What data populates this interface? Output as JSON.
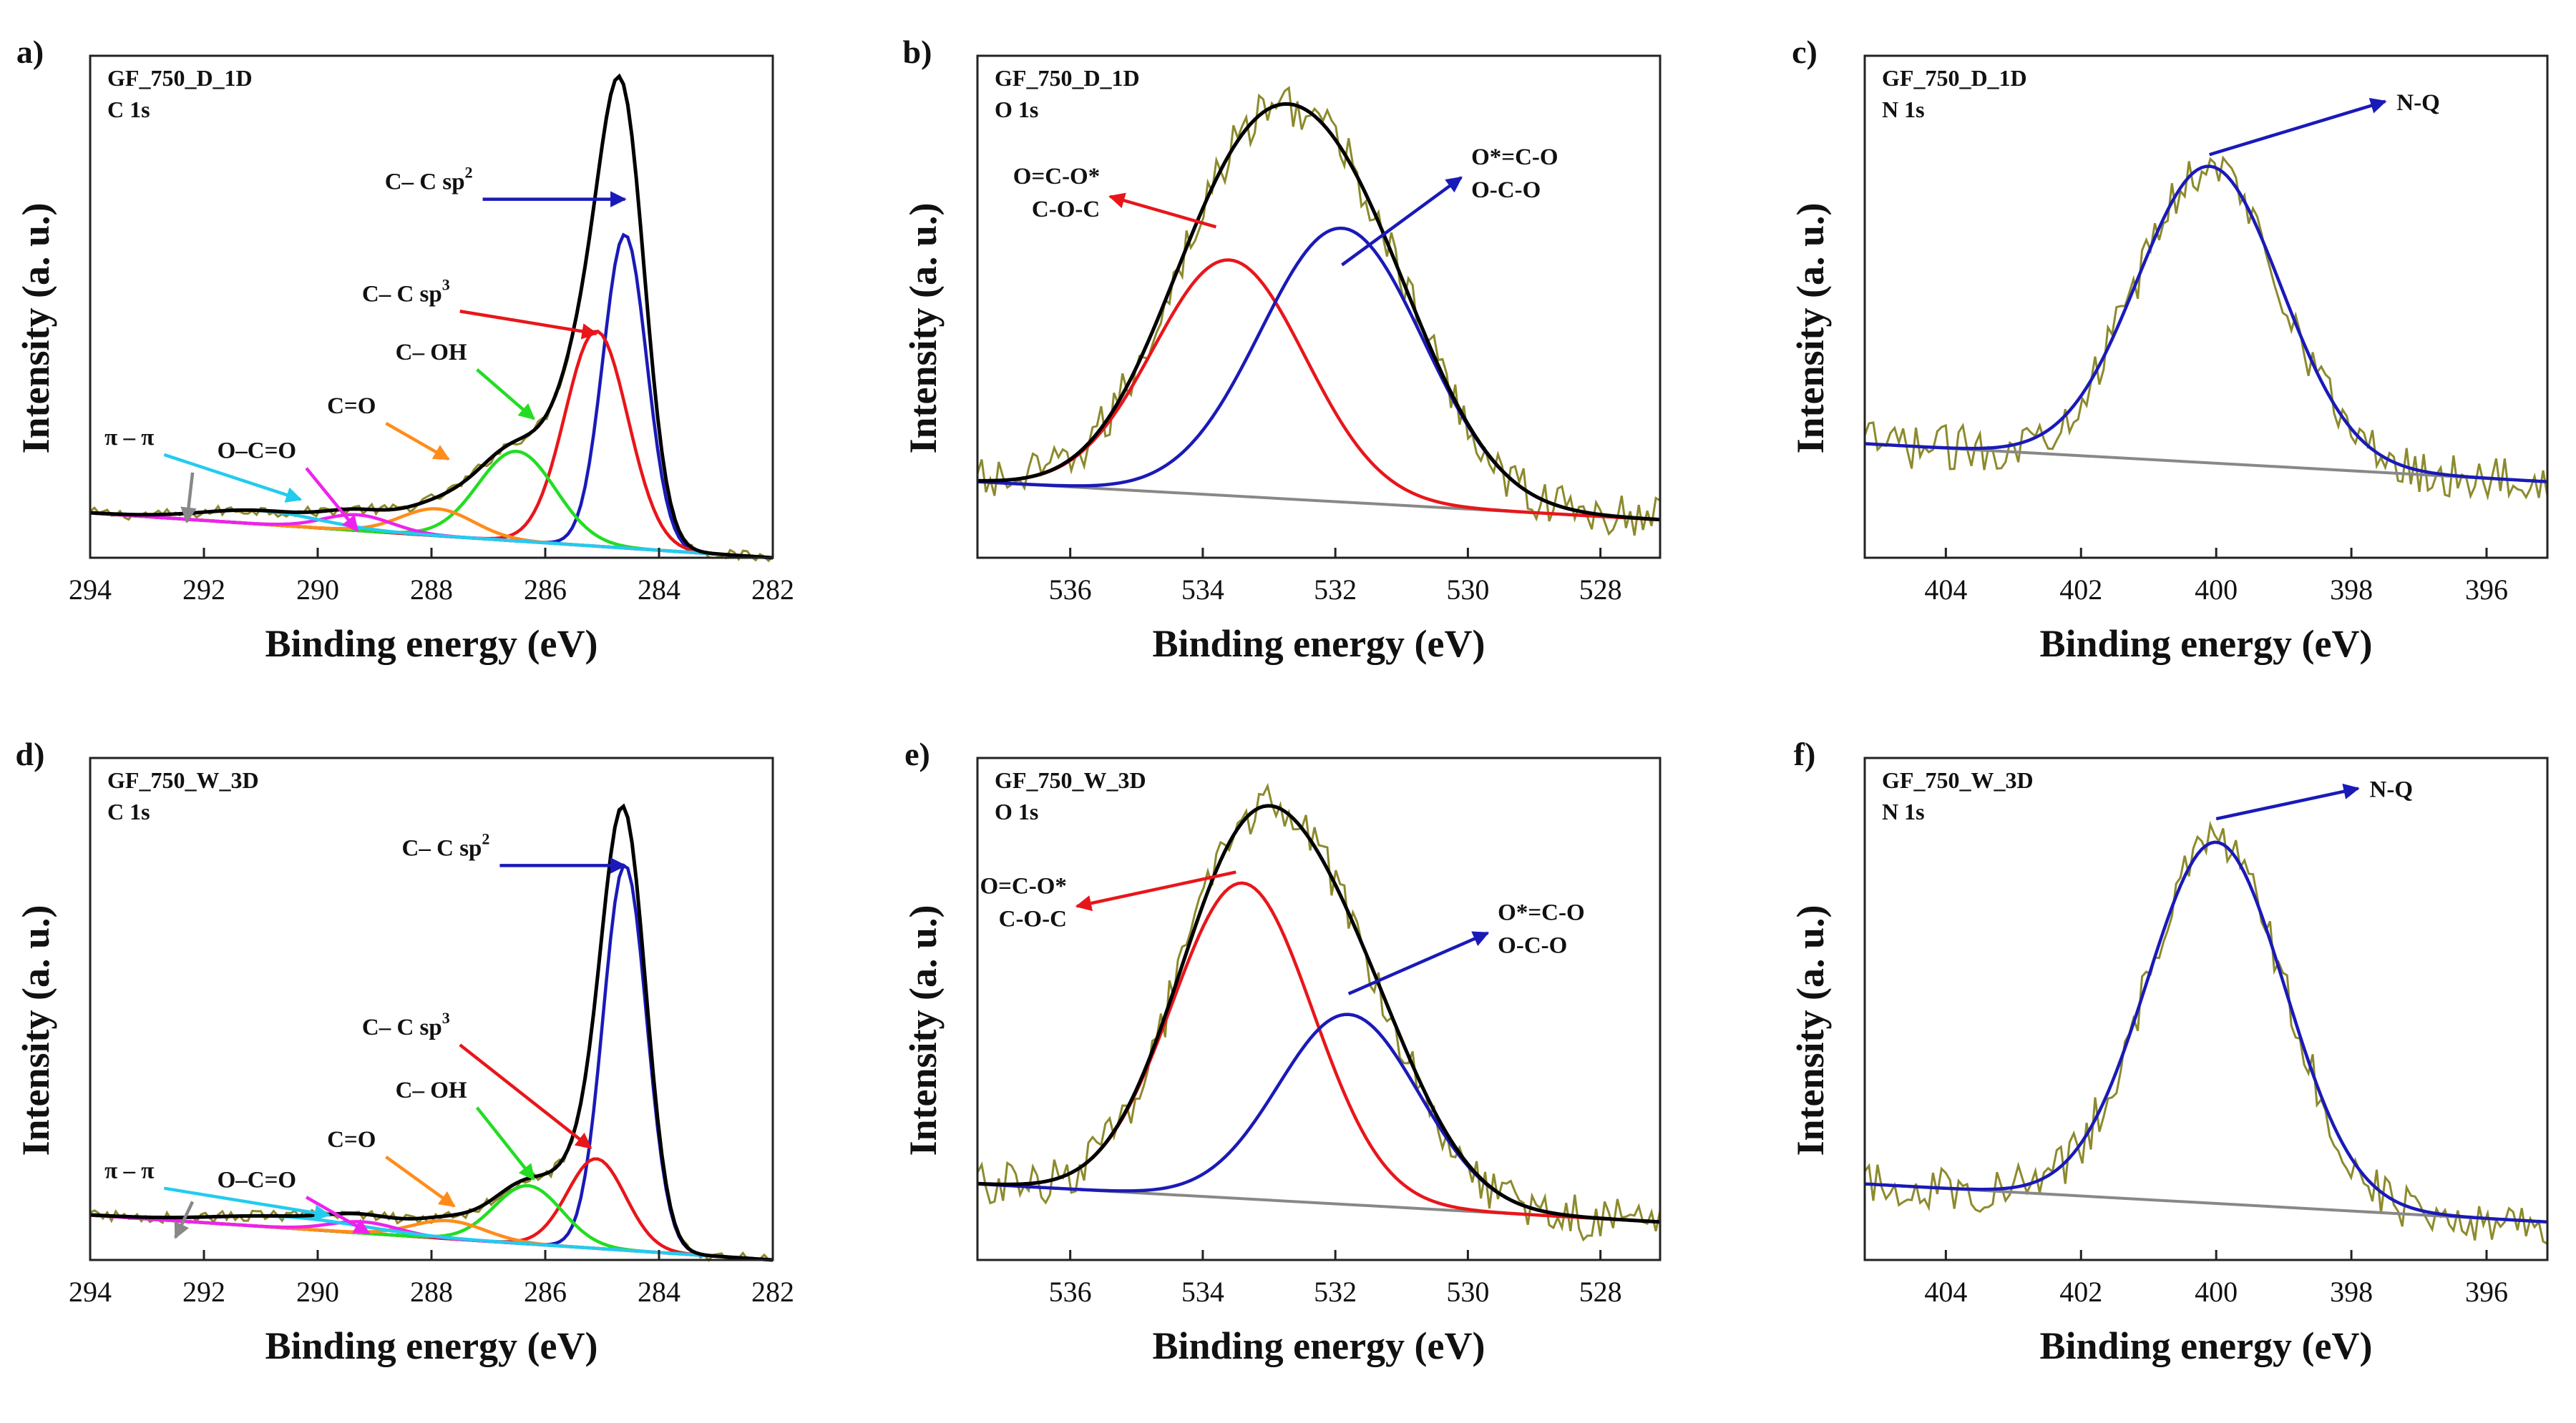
{
  "figure": {
    "background": "#ffffff"
  },
  "colors": {
    "raw": "#8c8a2c",
    "envelope": "#000000",
    "background": "#888888",
    "red": "#e8161b",
    "blue": "#1a1ab8",
    "green": "#22dd22",
    "orange": "#ff8c1a",
    "magenta": "#ee22ee",
    "cyan": "#22ccee",
    "gray": "#888888"
  },
  "chart_data": [
    {
      "panel": "a)",
      "type": "line",
      "spectrum": "C 1s",
      "sample": "GF_750_D_1D",
      "xlabel": "Binding energy (eV)",
      "ylabel": "Intensity (a. u.)",
      "xlim": [
        294,
        282
      ],
      "ylim": [
        0,
        1.12
      ],
      "xticks": [
        294,
        292,
        290,
        288,
        286,
        284,
        282
      ],
      "baseline": {
        "start": 0.1,
        "end": 0.0
      },
      "components": [
        {
          "name": "C– C sp2",
          "center": 284.6,
          "fwhm": 0.9,
          "height": 0.7,
          "color": "#1a1ab8"
        },
        {
          "name": "C– C sp3",
          "center": 285.1,
          "fwhm": 1.3,
          "height": 0.48,
          "color": "#e8161b"
        },
        {
          "name": "C– OH",
          "center": 286.5,
          "fwhm": 1.6,
          "height": 0.2,
          "color": "#22dd22"
        },
        {
          "name": "C=O",
          "center": 287.9,
          "fwhm": 1.5,
          "height": 0.06,
          "color": "#ff8c1a"
        },
        {
          "name": "O–C=O",
          "center": 289.3,
          "fwhm": 1.4,
          "height": 0.035,
          "color": "#ee22ee"
        },
        {
          "name": "π – π",
          "center": 291.0,
          "fwhm": 2.4,
          "height": 0.03,
          "color": "#22ccee"
        }
      ],
      "annotations": [
        {
          "text": "C– C sp",
          "sup": "2",
          "tx": 287.1,
          "ty": 0.8,
          "ax": 284.6,
          "ay": 0.8,
          "color": "#1a1ab8"
        },
        {
          "text": "C– C sp",
          "sup": "3",
          "tx": 287.5,
          "ty": 0.55,
          "ax": 285.1,
          "ay": 0.5,
          "color": "#e8161b"
        },
        {
          "text": "C– OH",
          "tx": 287.2,
          "ty": 0.42,
          "ax": 286.2,
          "ay": 0.31,
          "color": "#22dd22"
        },
        {
          "text": "C=O",
          "tx": 288.8,
          "ty": 0.3,
          "ax": 287.7,
          "ay": 0.22,
          "color": "#ff8c1a"
        },
        {
          "text": "O–C=O",
          "tx": 290.2,
          "ty": 0.2,
          "ax": 289.3,
          "ay": 0.06,
          "color": "#ee22ee"
        },
        {
          "text": "π – π",
          "tx": 292.7,
          "ty": 0.23,
          "ax": 290.3,
          "ay": 0.13,
          "color": "#22ccee"
        },
        {
          "text": "",
          "tx": 292.2,
          "ty": 0.19,
          "ax": 292.3,
          "ay": 0.08,
          "color": "#888888"
        }
      ]
    },
    {
      "panel": "b)",
      "type": "line",
      "spectrum": "O 1s",
      "sample": "GF_750_D_1D",
      "xlabel": "Binding energy (eV)",
      "ylabel": "Intensity (a. u.)",
      "xlim": [
        537.4,
        527.1
      ],
      "ylim": [
        -0.2,
        1.12
      ],
      "xticks": [
        536,
        534,
        532,
        530,
        528
      ],
      "baseline": {
        "start": 0.0,
        "end": -0.1
      },
      "components": [
        {
          "name": "O=C-O* C-O-C",
          "center": 533.6,
          "fwhm": 2.7,
          "height": 0.62,
          "color": "#e8161b"
        },
        {
          "name": "O*=C-O O-C-O",
          "center": 531.9,
          "fwhm": 2.9,
          "height": 0.72,
          "color": "#1a1ab8"
        }
      ],
      "annotations": [
        {
          "lines": [
            "O=C-O*",
            "C-O-C"
          ],
          "tx": 535.4,
          "ty": 0.75,
          "ax": 533.8,
          "ay": 0.67,
          "color": "#e8161b"
        },
        {
          "lines": [
            "O*=C-O",
            "O-C-O"
          ],
          "tx": 530.1,
          "ty": 0.8,
          "ax": 531.9,
          "ay": 0.57,
          "color": "#1a1ab8"
        }
      ]
    },
    {
      "panel": "c)",
      "type": "line",
      "spectrum": "N 1s",
      "sample": "GF_750_D_1D",
      "xlabel": "Binding energy (eV)",
      "ylabel": "Intensity (a. u.)",
      "xlim": [
        405.2,
        395.1
      ],
      "ylim": [
        -0.2,
        1.12
      ],
      "xticks": [
        404,
        402,
        400,
        398,
        396
      ],
      "baseline": {
        "start": 0.1,
        "end": 0.0
      },
      "components": [
        {
          "name": "N-Q",
          "center": 400.1,
          "fwhm": 2.5,
          "height": 0.78,
          "color": "#1a1ab8"
        }
      ],
      "annotations": [
        {
          "text": "N-Q",
          "tx": 397.5,
          "ty": 1.0,
          "ax": 400.1,
          "ay": 0.86,
          "color": "#1a1ab8"
        }
      ]
    },
    {
      "panel": "d)",
      "type": "line",
      "spectrum": "C 1s",
      "sample": "GF_750_W_3D",
      "xlabel": "Binding energy (eV)",
      "ylabel": "Intensity (a. u.)",
      "xlim": [
        294,
        282
      ],
      "ylim": [
        0,
        1.12
      ],
      "xticks": [
        294,
        292,
        290,
        288,
        286,
        284,
        282
      ],
      "baseline": {
        "start": 0.1,
        "end": 0.0
      },
      "components": [
        {
          "name": "C– C sp2",
          "center": 284.6,
          "fwhm": 0.9,
          "height": 0.86,
          "color": "#1a1ab8"
        },
        {
          "name": "C– C sp3",
          "center": 285.1,
          "fwhm": 1.2,
          "height": 0.2,
          "color": "#e8161b"
        },
        {
          "name": "C– OH",
          "center": 286.3,
          "fwhm": 1.4,
          "height": 0.13,
          "color": "#22dd22"
        },
        {
          "name": "C=O",
          "center": 287.7,
          "fwhm": 1.5,
          "height": 0.04,
          "color": "#ff8c1a"
        },
        {
          "name": "O–C=O",
          "center": 289.2,
          "fwhm": 1.4,
          "height": 0.025,
          "color": "#ee22ee"
        },
        {
          "name": "π – π",
          "center": 290.5,
          "fwhm": 3.0,
          "height": 0.025,
          "color": "#22ccee"
        }
      ],
      "annotations": [
        {
          "text": "C– C sp",
          "sup": "2",
          "tx": 286.8,
          "ty": 0.88,
          "ax": 284.6,
          "ay": 0.88,
          "color": "#1a1ab8"
        },
        {
          "text": "C– C sp",
          "sup": "3",
          "tx": 287.5,
          "ty": 0.48,
          "ax": 285.2,
          "ay": 0.25,
          "color": "#e8161b"
        },
        {
          "text": "C– OH",
          "tx": 287.2,
          "ty": 0.34,
          "ax": 286.2,
          "ay": 0.18,
          "color": "#22dd22"
        },
        {
          "text": "C=O",
          "tx": 288.8,
          "ty": 0.23,
          "ax": 287.6,
          "ay": 0.12,
          "color": "#ff8c1a"
        },
        {
          "text": "O–C=O",
          "tx": 290.2,
          "ty": 0.14,
          "ax": 289.1,
          "ay": 0.06,
          "color": "#ee22ee"
        },
        {
          "text": "π – π",
          "tx": 292.7,
          "ty": 0.16,
          "ax": 289.8,
          "ay": 0.1,
          "color": "#22ccee"
        },
        {
          "text": "",
          "tx": 292.2,
          "ty": 0.13,
          "ax": 292.5,
          "ay": 0.05,
          "color": "#888888"
        }
      ]
    },
    {
      "panel": "e)",
      "type": "line",
      "spectrum": "O 1s",
      "sample": "GF_750_W_3D",
      "xlabel": "Binding energy (eV)",
      "ylabel": "Intensity (a. u.)",
      "xlim": [
        537.4,
        527.1
      ],
      "ylim": [
        -0.2,
        1.12
      ],
      "xticks": [
        536,
        534,
        532,
        530,
        528
      ],
      "baseline": {
        "start": 0.0,
        "end": -0.1
      },
      "components": [
        {
          "name": "O=C-O* C-O-C",
          "center": 533.4,
          "fwhm": 2.5,
          "height": 0.83,
          "color": "#e8161b"
        },
        {
          "name": "O*=C-O O-C-O",
          "center": 531.8,
          "fwhm": 2.5,
          "height": 0.5,
          "color": "#1a1ab8"
        }
      ],
      "annotations": [
        {
          "lines": [
            "O=C-O*",
            "C-O-C"
          ],
          "tx": 535.9,
          "ty": 0.73,
          "ax": 533.5,
          "ay": 0.82,
          "color": "#e8161b"
        },
        {
          "lines": [
            "O*=C-O",
            "O-C-O"
          ],
          "tx": 529.7,
          "ty": 0.66,
          "ax": 531.8,
          "ay": 0.5,
          "color": "#1a1ab8"
        }
      ]
    },
    {
      "panel": "f)",
      "type": "line",
      "spectrum": "N 1s",
      "sample": "GF_750_W_3D",
      "xlabel": "Binding energy (eV)",
      "ylabel": "Intensity (a. u.)",
      "xlim": [
        405.2,
        395.1
      ],
      "ylim": [
        -0.2,
        1.12
      ],
      "xticks": [
        404,
        402,
        400,
        398,
        396
      ],
      "baseline": {
        "start": 0.0,
        "end": -0.1
      },
      "components": [
        {
          "name": "N-Q",
          "center": 400.0,
          "fwhm": 2.4,
          "height": 0.95,
          "color": "#1a1ab8"
        }
      ],
      "annotations": [
        {
          "text": "N-Q",
          "tx": 397.9,
          "ty": 1.04,
          "ax": 400.0,
          "ay": 0.96,
          "color": "#1a1ab8"
        }
      ]
    }
  ]
}
